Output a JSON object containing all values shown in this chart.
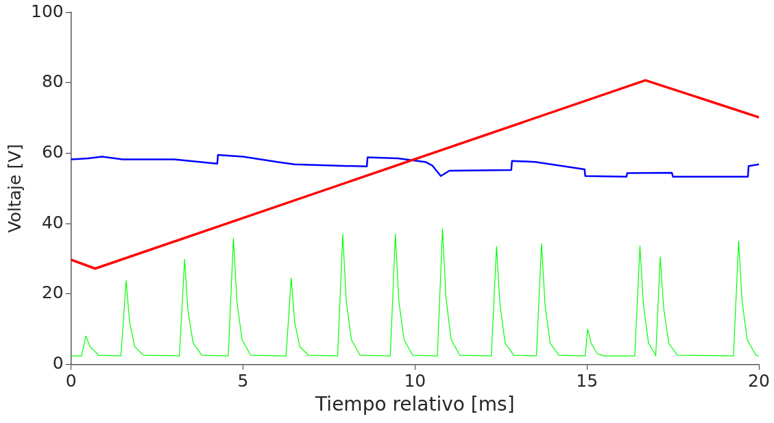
{
  "chart_data": {
    "type": "line",
    "xlabel": "Tiempo relativo [ms]",
    "ylabel": "Voltaje [V]",
    "xlim": [
      0,
      20
    ],
    "xticks": [
      0,
      5,
      10,
      15,
      20
    ],
    "ylim": [
      0,
      100
    ],
    "yticks": [
      0,
      20,
      40,
      60,
      80,
      100
    ],
    "grid": false,
    "legend": false,
    "marker": "none",
    "line_style": "solid",
    "series": [
      {
        "color": "#ff0000",
        "x": [
          0,
          0.7,
          16.7,
          20
        ],
        "values": [
          29.7,
          27.2,
          80.7,
          70.2
        ]
      },
      {
        "color": "#0000ff",
        "x": [
          0,
          0.5,
          0.9,
          1.5,
          3,
          4.25,
          4.27,
          5,
          6,
          6.5,
          8.6,
          8.62,
          9.5,
          10.3,
          10.5,
          10.75,
          11,
          12.8,
          12.82,
          13.5,
          14.93,
          14.95,
          16.15,
          16.17,
          17.47,
          17.5,
          19.68,
          19.7,
          20
        ],
        "values": [
          58.2,
          58.5,
          59,
          58.2,
          58.2,
          57,
          59.5,
          59,
          57.5,
          56.8,
          56.2,
          58.8,
          58.5,
          57.5,
          56.5,
          53.5,
          55,
          55.2,
          57.8,
          57.5,
          55.4,
          53.5,
          53.3,
          54.3,
          54.4,
          53.3,
          53.3,
          56.3,
          56.8
        ]
      },
      {
        "color": "#00ff00",
        "x": [
          0,
          0.3,
          0.43,
          0.55,
          0.8,
          1.45,
          1.6,
          1.7,
          1.85,
          2.1,
          3.15,
          3.3,
          3.4,
          3.55,
          3.8,
          4.57,
          4.72,
          4.82,
          4.97,
          5.22,
          6.25,
          6.4,
          6.5,
          6.65,
          6.9,
          7.75,
          7.9,
          8,
          8.15,
          8.4,
          9.28,
          9.43,
          9.53,
          9.68,
          9.93,
          10.65,
          10.8,
          10.9,
          11.05,
          11.3,
          12.22,
          12.37,
          12.47,
          12.62,
          12.87,
          13.53,
          13.68,
          13.78,
          13.93,
          14.18,
          14.95,
          15.02,
          15.12,
          15.3,
          15.5,
          16.39,
          16.54,
          16.64,
          16.79,
          16.98,
          17,
          17.13,
          17.23,
          17.38,
          17.63,
          19.26,
          19.41,
          19.51,
          19.66,
          19.91,
          20
        ],
        "values": [
          2.4,
          2.4,
          8,
          5,
          2.6,
          2.4,
          23.8,
          12,
          5,
          2.6,
          2.4,
          29.8,
          15,
          6,
          2.6,
          2.4,
          35.8,
          18,
          7,
          2.6,
          2.4,
          24.5,
          12,
          5,
          2.6,
          2.4,
          37,
          18,
          7,
          2.6,
          2.4,
          37,
          18,
          7,
          2.6,
          2.4,
          38.5,
          19,
          7,
          2.6,
          2.4,
          33.5,
          17,
          6,
          2.6,
          2.4,
          34.3,
          17,
          6,
          2.6,
          2.4,
          10,
          6,
          3,
          2.4,
          2.4,
          33.6,
          17,
          6,
          3,
          2.4,
          30.5,
          16,
          6,
          2.6,
          2.4,
          35,
          18,
          7,
          2.6,
          2.4
        ]
      }
    ]
  }
}
